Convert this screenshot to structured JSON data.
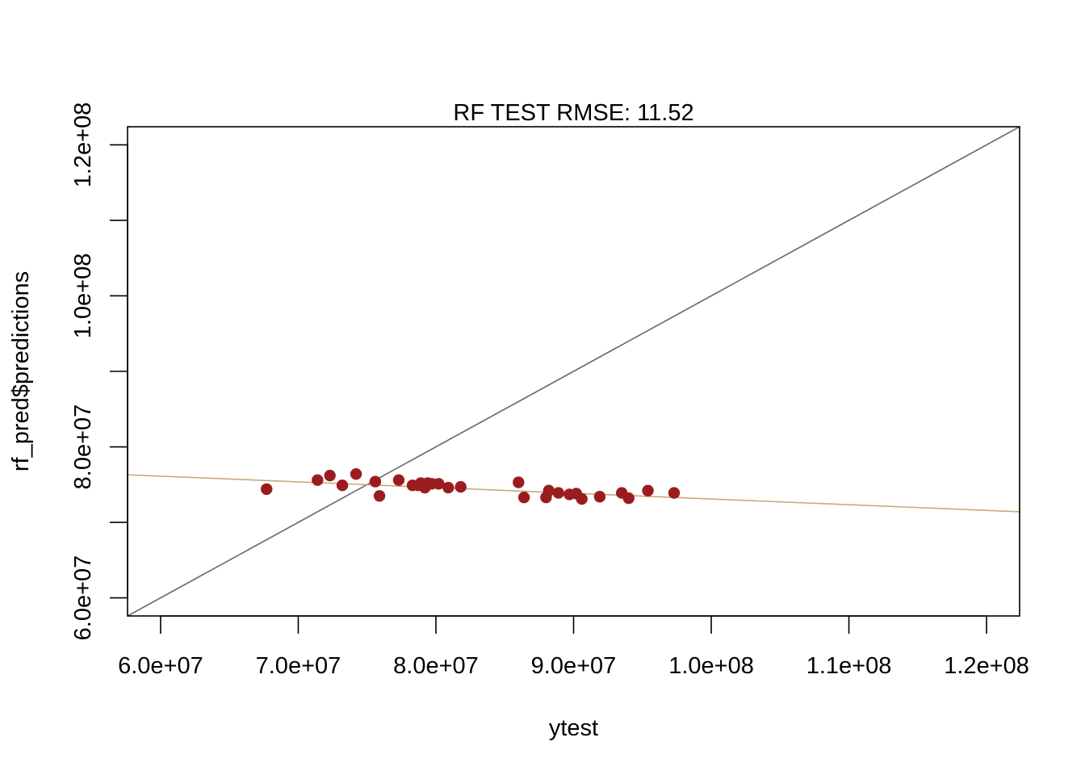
{
  "chart_data": {
    "type": "scatter",
    "title": "RF TEST RMSE: 11.52",
    "xlabel": "ytest",
    "ylabel": "rf_pred$predictions",
    "xlim": [
      57600000,
      122400000
    ],
    "ylim": [
      57600000,
      122400000
    ],
    "x_ticks": [
      {
        "value": 60000000,
        "label": "6.0e+07"
      },
      {
        "value": 70000000,
        "label": "7.0e+07"
      },
      {
        "value": 80000000,
        "label": "8.0e+07"
      },
      {
        "value": 90000000,
        "label": "9.0e+07"
      },
      {
        "value": 100000000,
        "label": "1.0e+08"
      },
      {
        "value": 110000000,
        "label": "1.1e+08"
      },
      {
        "value": 120000000,
        "label": "1.2e+08"
      }
    ],
    "y_ticks": [
      {
        "value": 60000000,
        "label": "6.0e+07"
      },
      {
        "value": 70000000,
        "label": ""
      },
      {
        "value": 80000000,
        "label": "8.0e+07"
      },
      {
        "value": 90000000,
        "label": ""
      },
      {
        "value": 100000000,
        "label": "1.0e+08"
      },
      {
        "value": 110000000,
        "label": ""
      },
      {
        "value": 120000000,
        "label": "1.2e+08"
      }
    ],
    "grid": false,
    "point_color": "#9B1C1F",
    "identity_line": {
      "from": [
        57600000,
        57600000
      ],
      "to": [
        122400000,
        122400000
      ],
      "color": "#666666"
    },
    "fit_line": {
      "from": [
        57600000,
        76300000
      ],
      "to": [
        122400000,
        71400000
      ],
      "color": "#C8A878"
    },
    "points": [
      {
        "x": 67700000,
        "y": 74400000
      },
      {
        "x": 71400000,
        "y": 75600000
      },
      {
        "x": 72300000,
        "y": 76200000
      },
      {
        "x": 73200000,
        "y": 74900000
      },
      {
        "x": 74200000,
        "y": 76400000
      },
      {
        "x": 75600000,
        "y": 75400000
      },
      {
        "x": 75900000,
        "y": 73500000
      },
      {
        "x": 77300000,
        "y": 75600000
      },
      {
        "x": 78300000,
        "y": 74900000
      },
      {
        "x": 78700000,
        "y": 74900000
      },
      {
        "x": 78900000,
        "y": 75200000
      },
      {
        "x": 79200000,
        "y": 74600000
      },
      {
        "x": 79400000,
        "y": 75200000
      },
      {
        "x": 79700000,
        "y": 75100000
      },
      {
        "x": 80200000,
        "y": 75100000
      },
      {
        "x": 80900000,
        "y": 74600000
      },
      {
        "x": 81800000,
        "y": 74700000
      },
      {
        "x": 86000000,
        "y": 75300000
      },
      {
        "x": 86400000,
        "y": 73300000
      },
      {
        "x": 88000000,
        "y": 73300000
      },
      {
        "x": 88200000,
        "y": 74200000
      },
      {
        "x": 88900000,
        "y": 73900000
      },
      {
        "x": 89700000,
        "y": 73700000
      },
      {
        "x": 90200000,
        "y": 73800000
      },
      {
        "x": 90600000,
        "y": 73100000
      },
      {
        "x": 91900000,
        "y": 73400000
      },
      {
        "x": 93500000,
        "y": 73900000
      },
      {
        "x": 94000000,
        "y": 73200000
      },
      {
        "x": 95400000,
        "y": 74200000
      },
      {
        "x": 97300000,
        "y": 73900000
      }
    ]
  }
}
